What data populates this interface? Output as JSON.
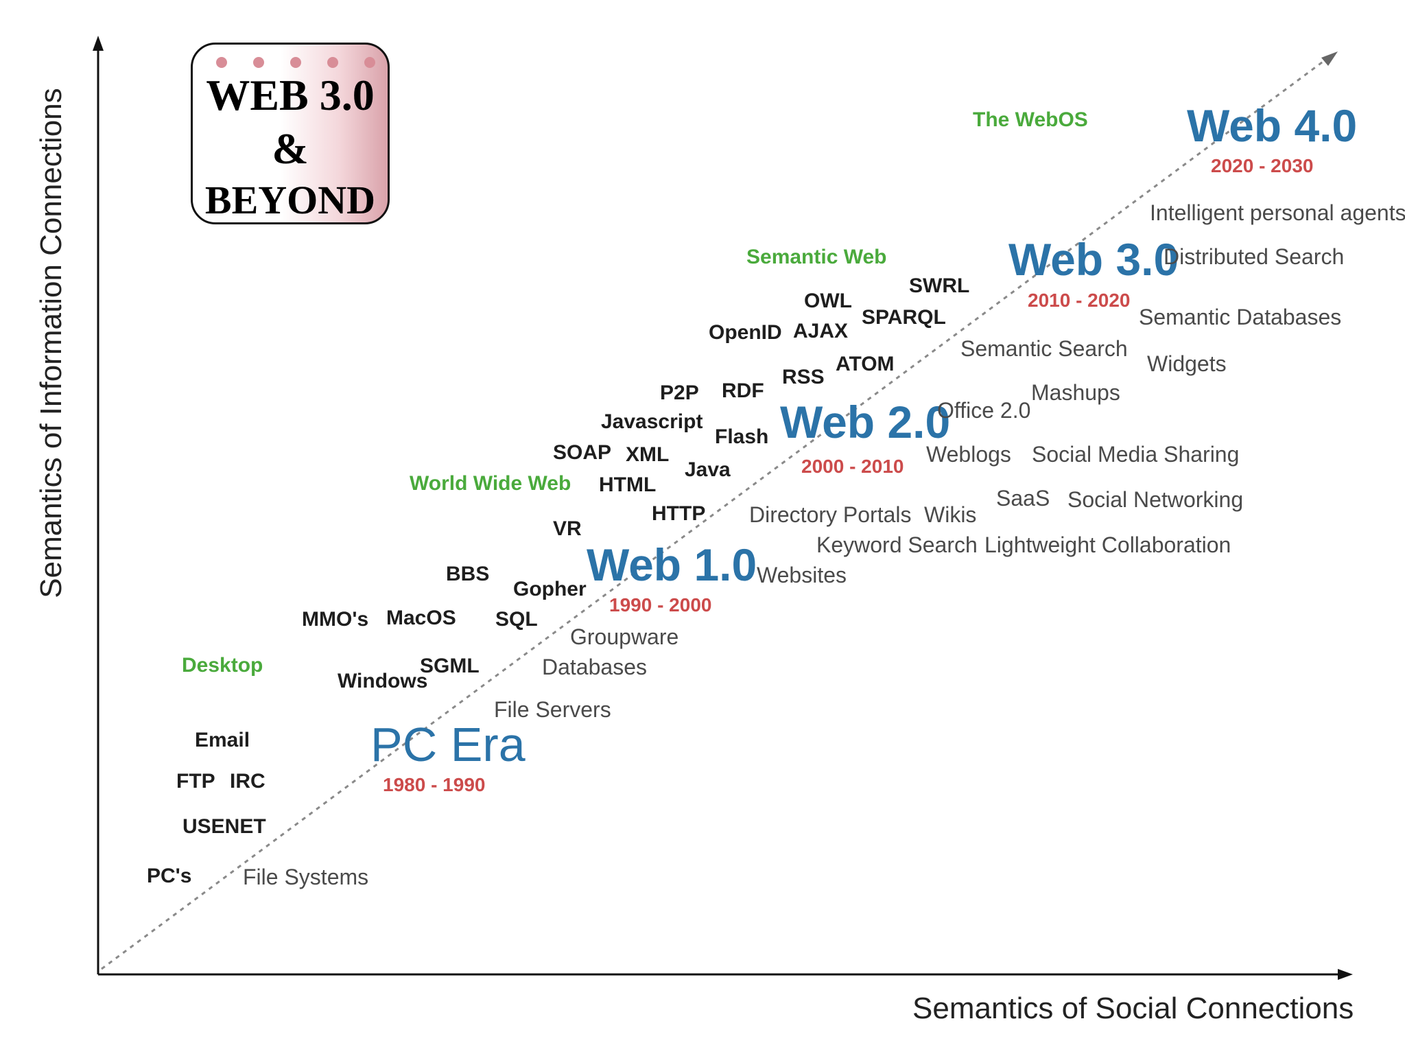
{
  "badge": {
    "line1": "WEB 3.0",
    "line2": "&",
    "line3": "BEYOND"
  },
  "axes": {
    "y_title": "Semantics of Information Connections",
    "x_title": "Semantics of Social Connections"
  },
  "eras": [
    {
      "name": "PC Era",
      "years": "1980 - 1990"
    },
    {
      "name": "Web 1.0",
      "years": "1990 - 2000"
    },
    {
      "name": "Web 2.0",
      "years": "2000 - 2010"
    },
    {
      "name": "Web 3.0",
      "years": "2010 - 2020"
    },
    {
      "name": "Web 4.0",
      "years": "2020 - 2030"
    }
  ],
  "categories": [
    "Desktop",
    "World Wide Web",
    "Semantic Web",
    "The WebOS"
  ],
  "technologies": [
    "Email",
    "FTP",
    "IRC",
    "USENET",
    "PC's",
    "MMO's",
    "MacOS",
    "Windows",
    "SGML",
    "BBS",
    "SQL",
    "Gopher",
    "VR",
    "SOAP",
    "XML",
    "HTML",
    "HTTP",
    "Javascript",
    "Java",
    "P2P",
    "RDF",
    "Flash",
    "RSS",
    "OpenID",
    "AJAX",
    "OWL",
    "ATOM",
    "SPARQL",
    "SWRL"
  ],
  "applications": [
    "File Systems",
    "File Servers",
    "Databases",
    "Groupware",
    "Websites",
    "Directory Portals",
    "Keyword Search",
    "Wikis",
    "Weblogs",
    "Office 2.0",
    "SaaS",
    "Lightweight Collaboration",
    "Social Networking",
    "Social Media Sharing",
    "Mashups",
    "Semantic Search",
    "Widgets",
    "Semantic Databases",
    "Distributed Search",
    "Intelligent personal agents"
  ]
}
